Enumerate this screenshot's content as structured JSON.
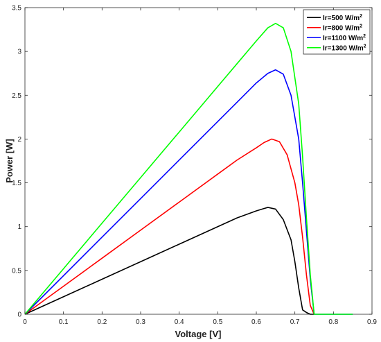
{
  "chart_data": {
    "type": "line",
    "title": "",
    "xlabel": "Voltage [V]",
    "ylabel": "Power [W]",
    "xlim": [
      0,
      0.9
    ],
    "ylim": [
      0,
      3.5
    ],
    "xticks": [
      "0",
      "0.1",
      "0.2",
      "0.3",
      "0.4",
      "0.5",
      "0.6",
      "0.7",
      "0.8",
      "0.9"
    ],
    "yticks": [
      "0",
      "0.5",
      "1",
      "1.5",
      "2",
      "2.5",
      "3",
      "3.5"
    ],
    "grid": false,
    "legend_position": "top-right",
    "series": [
      {
        "name": "Ir=500 W/m",
        "name_superscript": "2",
        "color": "#000000",
        "x": [
          0,
          0.1,
          0.2,
          0.3,
          0.4,
          0.5,
          0.55,
          0.6,
          0.63,
          0.65,
          0.67,
          0.69,
          0.7,
          0.71,
          0.72,
          0.73,
          0.74,
          0.75
        ],
        "y": [
          0,
          0.2,
          0.4,
          0.6,
          0.8,
          1.0,
          1.1,
          1.18,
          1.22,
          1.2,
          1.08,
          0.85,
          0.6,
          0.3,
          0.05,
          0.02,
          0,
          0
        ]
      },
      {
        "name": "Ir=800 W/m",
        "name_superscript": "2",
        "color": "#ff0000",
        "x": [
          0,
          0.1,
          0.2,
          0.3,
          0.4,
          0.5,
          0.55,
          0.6,
          0.62,
          0.64,
          0.66,
          0.68,
          0.7,
          0.71,
          0.72,
          0.73,
          0.74,
          0.75
        ],
        "y": [
          0,
          0.32,
          0.64,
          0.96,
          1.28,
          1.6,
          1.76,
          1.9,
          1.96,
          2.0,
          1.97,
          1.82,
          1.5,
          1.25,
          0.88,
          0.45,
          0.1,
          0
        ]
      },
      {
        "name": "Ir=1100 W/m",
        "name_superscript": "2",
        "color": "#0000ff",
        "x": [
          0,
          0.1,
          0.2,
          0.3,
          0.4,
          0.5,
          0.55,
          0.6,
          0.63,
          0.65,
          0.67,
          0.69,
          0.71,
          0.72,
          0.73,
          0.74,
          0.75,
          0.85
        ],
        "y": [
          0,
          0.44,
          0.88,
          1.32,
          1.76,
          2.2,
          2.42,
          2.64,
          2.75,
          2.79,
          2.74,
          2.5,
          2.0,
          1.5,
          0.95,
          0.4,
          0,
          0
        ]
      },
      {
        "name": "Ir=1300 W/m",
        "name_superscript": "2",
        "color": "#00ff00",
        "x": [
          0,
          0.1,
          0.2,
          0.3,
          0.4,
          0.5,
          0.55,
          0.6,
          0.63,
          0.65,
          0.67,
          0.69,
          0.71,
          0.72,
          0.73,
          0.74,
          0.75,
          0.85
        ],
        "y": [
          0,
          0.52,
          1.04,
          1.56,
          2.08,
          2.6,
          2.86,
          3.12,
          3.27,
          3.32,
          3.27,
          3.0,
          2.4,
          1.8,
          1.1,
          0.45,
          0,
          0
        ]
      }
    ]
  }
}
